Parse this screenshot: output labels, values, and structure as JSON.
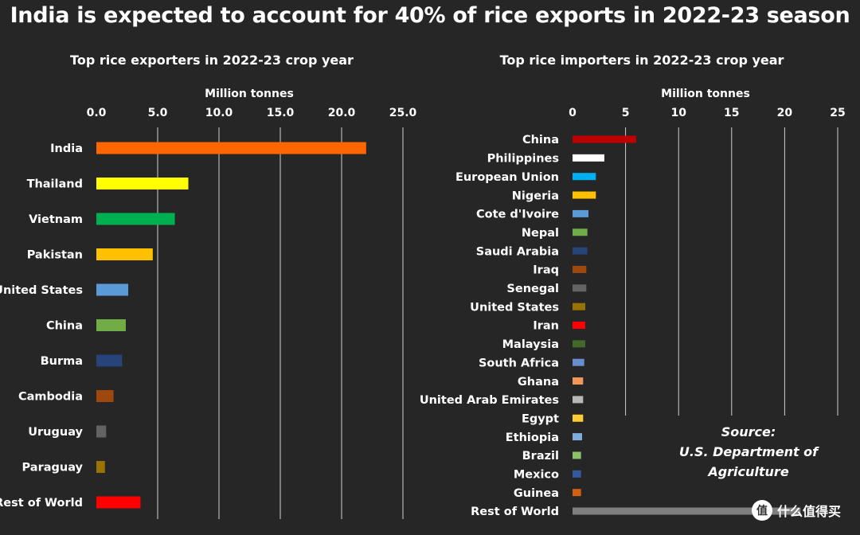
{
  "title": "India is expected to account for 40% of rice exports in 2022-23 season",
  "source": {
    "line1": "Source:",
    "line2": "U.S. Department of",
    "line3": "Agriculture"
  },
  "watermark": {
    "icon": "值",
    "text": "什么值得买"
  },
  "chart_data": [
    {
      "type": "bar",
      "orientation": "horizontal",
      "title": "Top rice exporters in 2022-23 crop year",
      "xlabel": "Million tonnes",
      "xlim": [
        0,
        25
      ],
      "xticks": [
        "0.0",
        "5.0",
        "10.0",
        "15.0",
        "20.0",
        "25.0"
      ],
      "categories": [
        "India",
        "Thailand",
        "Vietnam",
        "Pakistan",
        "United States",
        "China",
        "Burma",
        "Cambodia",
        "Uruguay",
        "Paraguay",
        "Rest of World"
      ],
      "values": [
        22.0,
        7.5,
        6.4,
        4.6,
        2.6,
        2.4,
        2.1,
        1.4,
        0.8,
        0.7,
        3.6
      ],
      "colors": [
        "#FF6600",
        "#FFFF00",
        "#00B050",
        "#FFC000",
        "#5B9BD5",
        "#70AD47",
        "#264478",
        "#9E480E",
        "#636363",
        "#997300",
        "#FF0000"
      ],
      "grid": true
    },
    {
      "type": "bar",
      "orientation": "horizontal",
      "title": "Top rice importers in 2022-23 crop year",
      "xlabel": "Million tonnes",
      "xlim": [
        0,
        25
      ],
      "xticks": [
        "0",
        "5",
        "10",
        "15",
        "20",
        "25"
      ],
      "categories": [
        "China",
        "Philippines",
        "European Union",
        "Nigeria",
        "Cote d'Ivoire",
        "Nepal",
        "Saudi Arabia",
        "Iraq",
        "Senegal",
        "United States",
        "Iran",
        "Malaysia",
        "South Africa",
        "Ghana",
        "United Arab Emirates",
        "Egypt",
        "Ethiopia",
        "Brazil",
        "Mexico",
        "Guinea",
        "Rest of World"
      ],
      "values": [
        6.0,
        3.0,
        2.2,
        2.2,
        1.5,
        1.4,
        1.4,
        1.3,
        1.3,
        1.2,
        1.2,
        1.2,
        1.1,
        1.0,
        1.0,
        1.0,
        0.9,
        0.8,
        0.8,
        0.8,
        21.5
      ],
      "colors": [
        "#C00000",
        "#FFFFFF",
        "#00B0F0",
        "#FFC000",
        "#5B9BD5",
        "#70AD47",
        "#264478",
        "#9E480E",
        "#636363",
        "#997300",
        "#FF0000",
        "#43682B",
        "#698ED0",
        "#F1975A",
        "#B7B7B7",
        "#FFCD33",
        "#7CAFDD",
        "#8CC168",
        "#335AA1",
        "#D26012",
        "#7F7F7F"
      ],
      "grid": true
    }
  ]
}
